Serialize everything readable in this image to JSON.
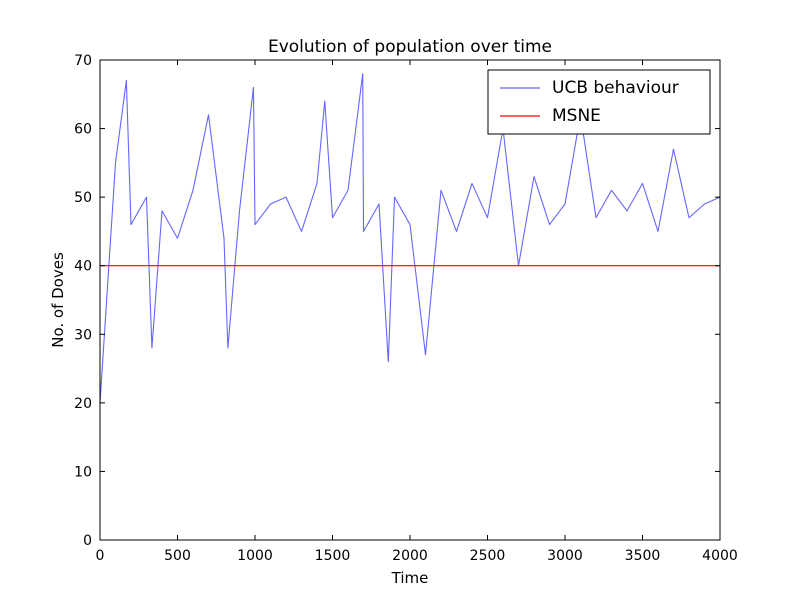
{
  "chart_data": {
    "type": "line",
    "title": "Evolution of population over time",
    "xlabel": "Time",
    "ylabel": "No. of Doves",
    "xlim": [
      0,
      4000
    ],
    "ylim": [
      0,
      70
    ],
    "x_ticks": [
      0,
      500,
      1000,
      1500,
      2000,
      2500,
      3000,
      3500,
      4000
    ],
    "y_ticks": [
      0,
      10,
      20,
      30,
      40,
      50,
      60,
      70
    ],
    "x_tick_labels": [
      "0",
      "500",
      "1000",
      "1500",
      "2000",
      "2500",
      "3000",
      "3500",
      "4000"
    ],
    "y_tick_labels": [
      "0",
      "10",
      "20",
      "30",
      "40",
      "50",
      "60",
      "70"
    ],
    "grid": false,
    "legend_position": "top-right",
    "series": [
      {
        "name": "UCB behaviour",
        "color": "#6666ff",
        "style": "noisy oscillation",
        "x": [
          0,
          100,
          170,
          200,
          300,
          335,
          400,
          500,
          600,
          700,
          800,
          825,
          900,
          990,
          1000,
          1100,
          1200,
          1300,
          1400,
          1450,
          1500,
          1600,
          1695,
          1700,
          1800,
          1860,
          1900,
          2000,
          2100,
          2200,
          2300,
          2400,
          2500,
          2600,
          2700,
          2800,
          2900,
          3000,
          3100,
          3200,
          3300,
          3400,
          3500,
          3600,
          3700,
          3800,
          3900,
          4000
        ],
        "values": [
          20,
          55,
          67,
          46,
          50,
          28,
          48,
          44,
          51,
          62,
          44,
          28,
          48,
          66,
          46,
          49,
          50,
          45,
          52,
          64,
          47,
          51,
          68,
          45,
          49,
          26,
          50,
          46,
          27,
          51,
          45,
          52,
          47,
          60,
          40,
          53,
          46,
          49,
          62,
          47,
          51,
          48,
          52,
          45,
          57,
          47,
          49,
          50
        ]
      },
      {
        "name": "MSNE",
        "color": "#ff0000",
        "style": "constant",
        "x": [
          0,
          4000
        ],
        "values": [
          40,
          40
        ]
      }
    ]
  }
}
